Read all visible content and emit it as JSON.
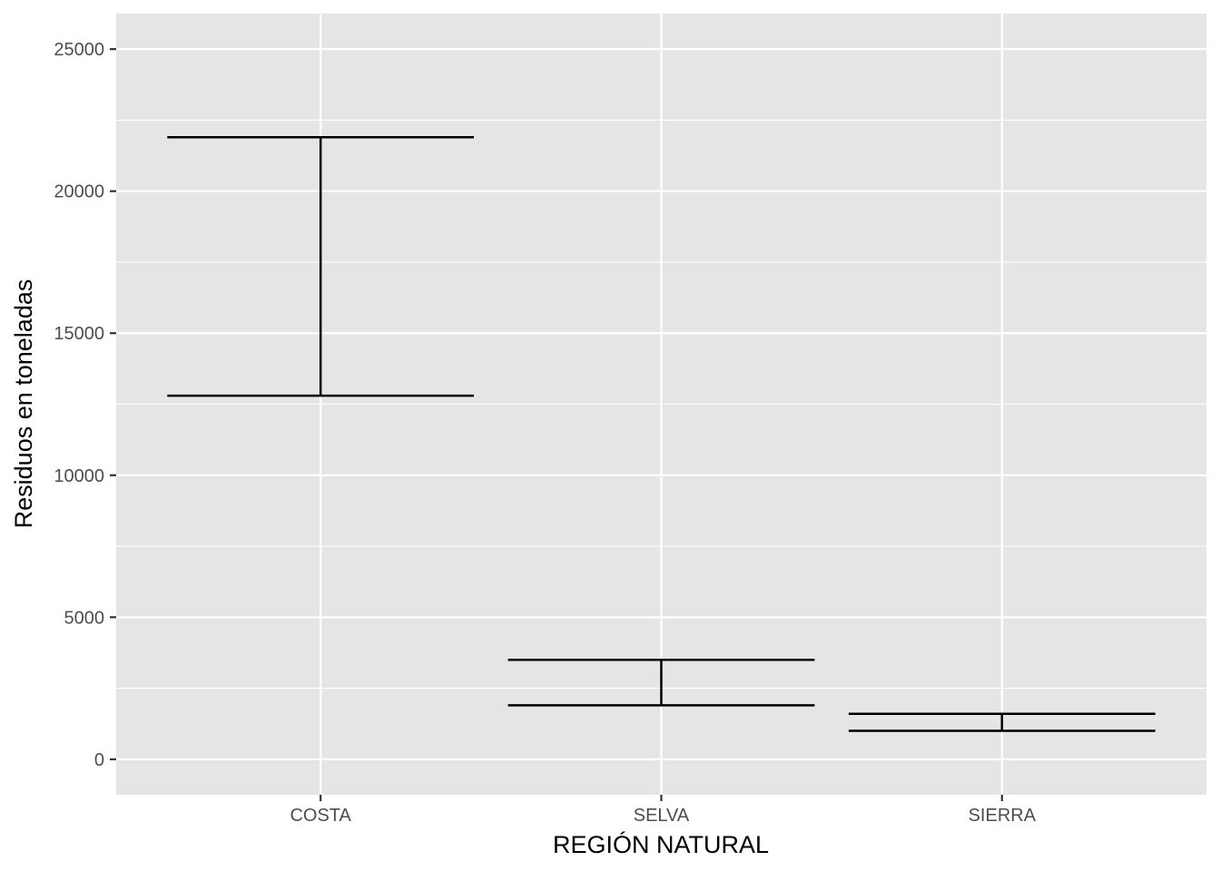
{
  "chart_data": {
    "type": "errorbar",
    "title": "",
    "xlabel": "REGIÓN NATURAL",
    "ylabel": "Residuos en toneladas",
    "categories": [
      "COSTA",
      "SELVA",
      "SIERRA"
    ],
    "lower": [
      12800,
      1900,
      1000
    ],
    "upper": [
      21900,
      3500,
      1600
    ],
    "ylim": [
      -1250,
      26250
    ],
    "yticks": [
      0,
      5000,
      10000,
      15000,
      20000,
      25000
    ],
    "grid": true,
    "legend": "none",
    "colors": {
      "panel": "#e5e5e5",
      "grid": "#ffffff",
      "errorbar": "#000000",
      "tick_text": "#4d4d4d",
      "tick_mark": "#333333"
    }
  }
}
